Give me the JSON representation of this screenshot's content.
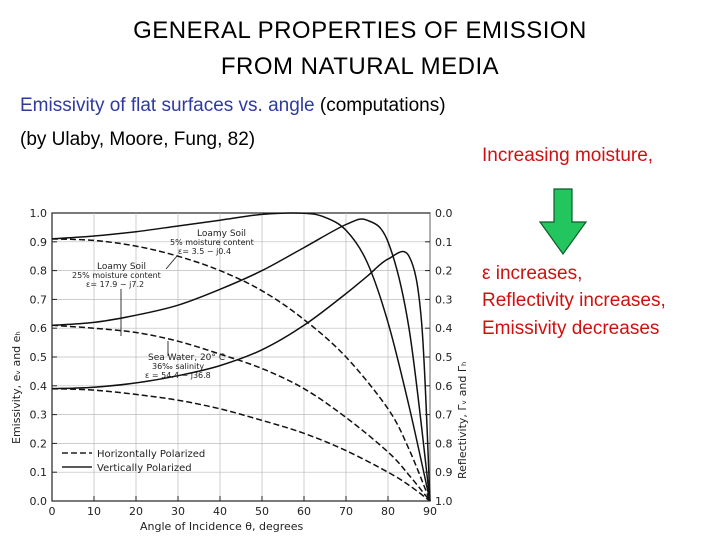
{
  "title": {
    "line1": "GENERAL PROPERTIES OF EMISSION",
    "line2": "FROM NATURAL MEDIA"
  },
  "subtitle": {
    "part1": "Emissivity of flat surfaces vs. angle",
    "part2": " (computations)",
    "line2": "(by Ulaby, Moore, Fung, 82)"
  },
  "notes": {
    "moisture": "Increasing moisture,",
    "epsilon": "ε increases,",
    "reflectivity": "Reflectivity increases,",
    "emissivity": "Emissivity decreases"
  },
  "colors": {
    "title": "#000000",
    "subtitle_accent": "#2e3a9f",
    "note_text": "#d01010",
    "arrow_fill": "#22c55e",
    "arrow_stroke": "#0a5c2a"
  },
  "chart_data": {
    "type": "line",
    "xlabel": "Angle of Incidence θ, degrees",
    "ylabel": "Emissivity, eᵥ and eₕ",
    "ylabel_right": "Reflectivity, Γᵥ and Γₕ",
    "xlim": [
      0,
      90
    ],
    "ylim": [
      0,
      1
    ],
    "x_ticks": [
      "0",
      "10",
      "20",
      "30",
      "40",
      "50",
      "60",
      "70",
      "80",
      "90"
    ],
    "y_ticks": [
      "0.0",
      "0.1",
      "0.2",
      "0.3",
      "0.4",
      "0.5",
      "0.6",
      "0.7",
      "0.8",
      "0.9",
      "1.0"
    ],
    "y_ticks_right": [
      "1.0",
      "0.9",
      "0.8",
      "0.7",
      "0.6",
      "0.5",
      "0.4",
      "0.3",
      "0.2",
      "0.1",
      "0.0"
    ],
    "legend": [
      {
        "label": "Horizontally Polarized",
        "style": "dashed"
      },
      {
        "label": "Vertically Polarized",
        "style": "solid"
      }
    ],
    "legend_position": "bottom-left",
    "annotations": [
      {
        "lines": [
          "Loamy Soil",
          "5% moisture content",
          "ε= 3.5 − j0.4"
        ]
      },
      {
        "lines": [
          "Loamy Soil",
          "25% moisture content",
          "ε= 17.9 − j7.2"
        ]
      },
      {
        "lines": [
          "Sea Water, 20° C",
          "36‰ salinity",
          "ε = 54.4 − j36.8"
        ]
      }
    ],
    "series": [
      {
        "medium": "Loamy soil 5% moisture",
        "polarization": "vertical",
        "x": [
          0,
          10,
          20,
          30,
          40,
          50,
          60,
          65,
          70,
          75,
          80,
          85,
          90
        ],
        "values": [
          0.91,
          0.92,
          0.935,
          0.955,
          0.975,
          0.995,
          0.999,
          0.985,
          0.94,
          0.83,
          0.62,
          0.33,
          0.0
        ]
      },
      {
        "medium": "Loamy soil 5% moisture",
        "polarization": "horizontal",
        "x": [
          0,
          10,
          20,
          30,
          40,
          50,
          60,
          70,
          80,
          85,
          90
        ],
        "values": [
          0.91,
          0.905,
          0.885,
          0.85,
          0.8,
          0.73,
          0.63,
          0.5,
          0.32,
          0.18,
          0.0
        ]
      },
      {
        "medium": "Loamy soil 25% moisture",
        "polarization": "vertical",
        "x": [
          0,
          10,
          20,
          30,
          40,
          50,
          60,
          70,
          75,
          80,
          85,
          90
        ],
        "values": [
          0.61,
          0.62,
          0.645,
          0.68,
          0.735,
          0.8,
          0.88,
          0.96,
          0.975,
          0.9,
          0.6,
          0.0
        ]
      },
      {
        "medium": "Loamy soil 25% moisture",
        "polarization": "horizontal",
        "x": [
          0,
          10,
          20,
          30,
          40,
          50,
          60,
          70,
          80,
          85,
          90
        ],
        "values": [
          0.61,
          0.6,
          0.585,
          0.555,
          0.51,
          0.46,
          0.39,
          0.29,
          0.17,
          0.09,
          0.0
        ]
      },
      {
        "medium": "Sea water",
        "polarization": "vertical",
        "x": [
          0,
          10,
          20,
          30,
          40,
          50,
          60,
          70,
          75,
          80,
          85,
          88,
          90
        ],
        "values": [
          0.39,
          0.395,
          0.41,
          0.435,
          0.47,
          0.525,
          0.61,
          0.72,
          0.78,
          0.84,
          0.85,
          0.62,
          0.0
        ]
      },
      {
        "medium": "Sea water",
        "polarization": "horizontal",
        "x": [
          0,
          10,
          20,
          30,
          40,
          50,
          60,
          70,
          80,
          85,
          90
        ],
        "values": [
          0.39,
          0.385,
          0.37,
          0.35,
          0.32,
          0.28,
          0.235,
          0.175,
          0.1,
          0.055,
          0.0
        ]
      }
    ]
  }
}
